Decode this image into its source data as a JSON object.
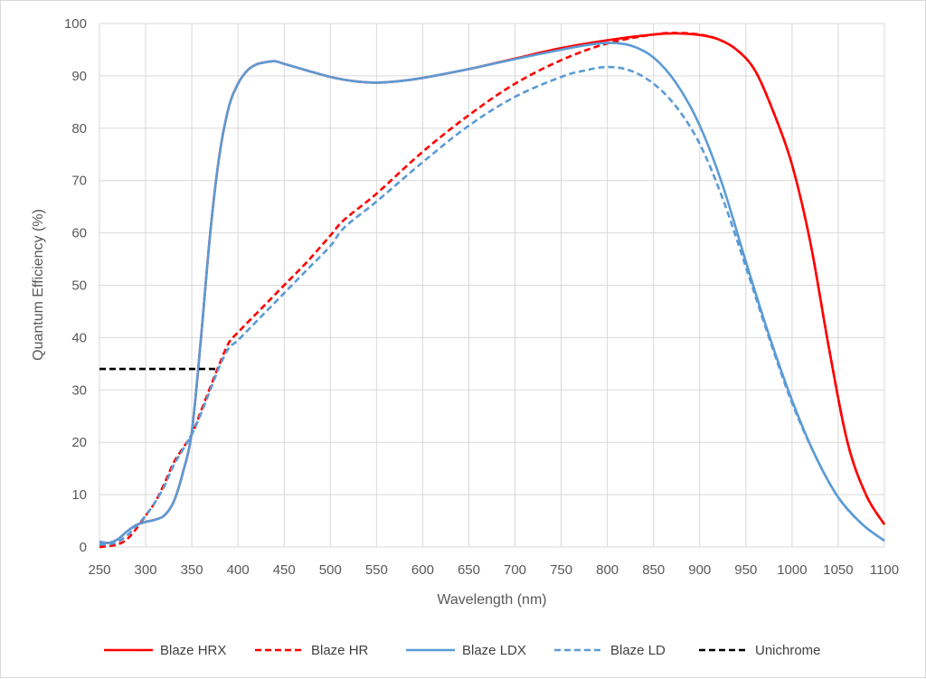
{
  "chart_data": {
    "type": "line",
    "title": "",
    "xlabel": "Wavelength (nm)",
    "ylabel": "Quantum Efficiency (%)",
    "xlim": [
      250,
      1100
    ],
    "ylim": [
      0,
      100
    ],
    "x_ticks": [
      250,
      300,
      350,
      400,
      450,
      500,
      550,
      600,
      650,
      700,
      750,
      800,
      850,
      900,
      950,
      1000,
      1050,
      1100
    ],
    "y_ticks": [
      0,
      10,
      20,
      30,
      40,
      50,
      60,
      70,
      80,
      90,
      100
    ],
    "grid": true,
    "legend_position": "bottom",
    "series": [
      {
        "name": "Blaze HRX",
        "color": "#ff0000",
        "style": "solid",
        "points": [
          [
            250,
            1
          ],
          [
            260,
            0.8
          ],
          [
            270,
            1.5
          ],
          [
            280,
            3
          ],
          [
            290,
            4.2
          ],
          [
            300,
            4.8
          ],
          [
            310,
            5.2
          ],
          [
            320,
            6
          ],
          [
            330,
            8.5
          ],
          [
            340,
            14
          ],
          [
            350,
            22
          ],
          [
            360,
            40
          ],
          [
            370,
            60
          ],
          [
            380,
            75
          ],
          [
            390,
            84
          ],
          [
            400,
            88.5
          ],
          [
            410,
            91
          ],
          [
            420,
            92.2
          ],
          [
            430,
            92.6
          ],
          [
            440,
            92.8
          ],
          [
            450,
            92.3
          ],
          [
            475,
            91
          ],
          [
            500,
            89.8
          ],
          [
            525,
            89
          ],
          [
            550,
            88.7
          ],
          [
            575,
            89
          ],
          [
            600,
            89.6
          ],
          [
            650,
            91.3
          ],
          [
            700,
            93.3
          ],
          [
            750,
            95.3
          ],
          [
            800,
            96.8
          ],
          [
            850,
            97.9
          ],
          [
            875,
            98.1
          ],
          [
            900,
            97.8
          ],
          [
            920,
            97
          ],
          [
            940,
            95
          ],
          [
            960,
            91
          ],
          [
            980,
            83
          ],
          [
            1000,
            73
          ],
          [
            1020,
            58
          ],
          [
            1040,
            38
          ],
          [
            1060,
            20
          ],
          [
            1080,
            10
          ],
          [
            1100,
            4.3
          ]
        ]
      },
      {
        "name": "Blaze HR",
        "color": "#ff0000",
        "style": "dashed",
        "points": [
          [
            250,
            0
          ],
          [
            260,
            0.2
          ],
          [
            270,
            0.5
          ],
          [
            280,
            1.5
          ],
          [
            290,
            3.5
          ],
          [
            300,
            6
          ],
          [
            310,
            8.5
          ],
          [
            320,
            12
          ],
          [
            330,
            16
          ],
          [
            340,
            18.8
          ],
          [
            350,
            21.5
          ],
          [
            360,
            26
          ],
          [
            370,
            30.5
          ],
          [
            380,
            35
          ],
          [
            390,
            39
          ],
          [
            400,
            41
          ],
          [
            425,
            45.5
          ],
          [
            450,
            50
          ],
          [
            475,
            54.5
          ],
          [
            500,
            59.5
          ],
          [
            515,
            62.5
          ],
          [
            550,
            67.5
          ],
          [
            600,
            75.5
          ],
          [
            650,
            82.5
          ],
          [
            700,
            88.5
          ],
          [
            750,
            93
          ],
          [
            800,
            96.2
          ],
          [
            850,
            97.9
          ],
          [
            875,
            98.2
          ],
          [
            900,
            97.9
          ],
          [
            920,
            97
          ],
          [
            940,
            95
          ],
          [
            960,
            91
          ],
          [
            980,
            83
          ],
          [
            1000,
            73
          ],
          [
            1020,
            58
          ],
          [
            1040,
            38
          ],
          [
            1060,
            20
          ],
          [
            1080,
            10
          ],
          [
            1100,
            4.3
          ]
        ]
      },
      {
        "name": "Blaze LDX",
        "color": "#5b9bd5",
        "style": "solid",
        "points": [
          [
            250,
            1
          ],
          [
            260,
            0.8
          ],
          [
            270,
            1.5
          ],
          [
            280,
            3
          ],
          [
            290,
            4.2
          ],
          [
            300,
            4.8
          ],
          [
            310,
            5.2
          ],
          [
            320,
            6
          ],
          [
            330,
            8.5
          ],
          [
            340,
            14
          ],
          [
            350,
            22
          ],
          [
            360,
            40
          ],
          [
            370,
            60
          ],
          [
            380,
            75
          ],
          [
            390,
            84
          ],
          [
            400,
            88.5
          ],
          [
            410,
            91
          ],
          [
            420,
            92.2
          ],
          [
            430,
            92.6
          ],
          [
            440,
            92.8
          ],
          [
            450,
            92.3
          ],
          [
            475,
            91
          ],
          [
            500,
            89.8
          ],
          [
            525,
            89
          ],
          [
            550,
            88.7
          ],
          [
            575,
            89
          ],
          [
            600,
            89.6
          ],
          [
            650,
            91.3
          ],
          [
            700,
            93.2
          ],
          [
            750,
            95
          ],
          [
            775,
            95.8
          ],
          [
            800,
            96.3
          ],
          [
            825,
            95.8
          ],
          [
            850,
            93.5
          ],
          [
            875,
            88.5
          ],
          [
            900,
            80.5
          ],
          [
            925,
            69
          ],
          [
            950,
            54.5
          ],
          [
            975,
            40.5
          ],
          [
            1000,
            28
          ],
          [
            1025,
            17.5
          ],
          [
            1050,
            9.5
          ],
          [
            1075,
            4.5
          ],
          [
            1100,
            1.2
          ]
        ]
      },
      {
        "name": "Blaze LD",
        "color": "#5b9bd5",
        "style": "dashed",
        "points": [
          [
            250,
            0.5
          ],
          [
            260,
            0.5
          ],
          [
            270,
            1
          ],
          [
            280,
            2.2
          ],
          [
            290,
            4
          ],
          [
            300,
            6
          ],
          [
            310,
            8.5
          ],
          [
            320,
            11.5
          ],
          [
            330,
            15.5
          ],
          [
            340,
            18.5
          ],
          [
            350,
            21.5
          ],
          [
            360,
            25.5
          ],
          [
            370,
            30
          ],
          [
            380,
            34.5
          ],
          [
            390,
            38
          ],
          [
            400,
            39.5
          ],
          [
            425,
            44
          ],
          [
            450,
            48.5
          ],
          [
            475,
            53
          ],
          [
            500,
            57.5
          ],
          [
            515,
            61
          ],
          [
            550,
            66
          ],
          [
            600,
            73.5
          ],
          [
            650,
            80.5
          ],
          [
            700,
            86
          ],
          [
            750,
            89.8
          ],
          [
            775,
            91
          ],
          [
            800,
            91.7
          ],
          [
            825,
            91
          ],
          [
            850,
            88.5
          ],
          [
            875,
            84
          ],
          [
            900,
            77
          ],
          [
            925,
            66.5
          ],
          [
            950,
            53.5
          ],
          [
            975,
            40
          ],
          [
            1000,
            27.5
          ],
          [
            1025,
            17.5
          ],
          [
            1050,
            9.5
          ],
          [
            1075,
            4.5
          ],
          [
            1100,
            1.2
          ]
        ]
      },
      {
        "name": "Unichrome",
        "color": "#000000",
        "style": "dashed",
        "points": [
          [
            250,
            34
          ],
          [
            378,
            34
          ]
        ]
      }
    ]
  }
}
